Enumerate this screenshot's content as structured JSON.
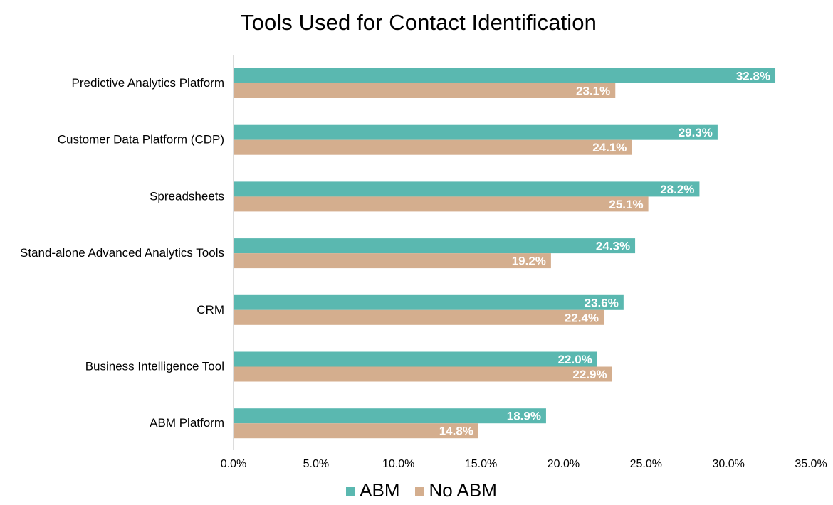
{
  "colors": {
    "abm": "#5ab8b0",
    "no_abm": "#d4ae8e",
    "axis": "#d0d0d0"
  },
  "chart_data": {
    "type": "bar",
    "orientation": "horizontal",
    "title": "Tools Used for Contact Identification",
    "categories": [
      "Predictive Analytics Platform",
      "Customer Data Platform (CDP)",
      "Spreadsheets",
      "Stand-alone Advanced Analytics Tools",
      "CRM",
      "Business Intelligence Tool",
      "ABM Platform"
    ],
    "series": [
      {
        "name": "ABM",
        "values": [
          32.8,
          29.3,
          28.2,
          24.3,
          23.6,
          22.0,
          18.9
        ],
        "labels": [
          "32.8%",
          "29.3%",
          "28.2%",
          "24.3%",
          "23.6%",
          "22.0%",
          "18.9%"
        ]
      },
      {
        "name": "No ABM",
        "values": [
          23.1,
          24.1,
          25.1,
          19.2,
          22.4,
          22.9,
          14.8
        ],
        "labels": [
          "23.1%",
          "24.1%",
          "25.1%",
          "19.2%",
          "22.4%",
          "22.9%",
          "14.8%"
        ]
      }
    ],
    "xlim": [
      0,
      35
    ],
    "x_ticks": [
      0,
      5,
      10,
      15,
      20,
      25,
      30,
      35
    ],
    "x_tick_labels": [
      "0.0%",
      "5.0%",
      "10.0%",
      "15.0%",
      "20.0%",
      "25.0%",
      "30.0%",
      "35.0%"
    ],
    "xlabel": "",
    "ylabel": "",
    "grid": false,
    "legend": "bottom"
  }
}
